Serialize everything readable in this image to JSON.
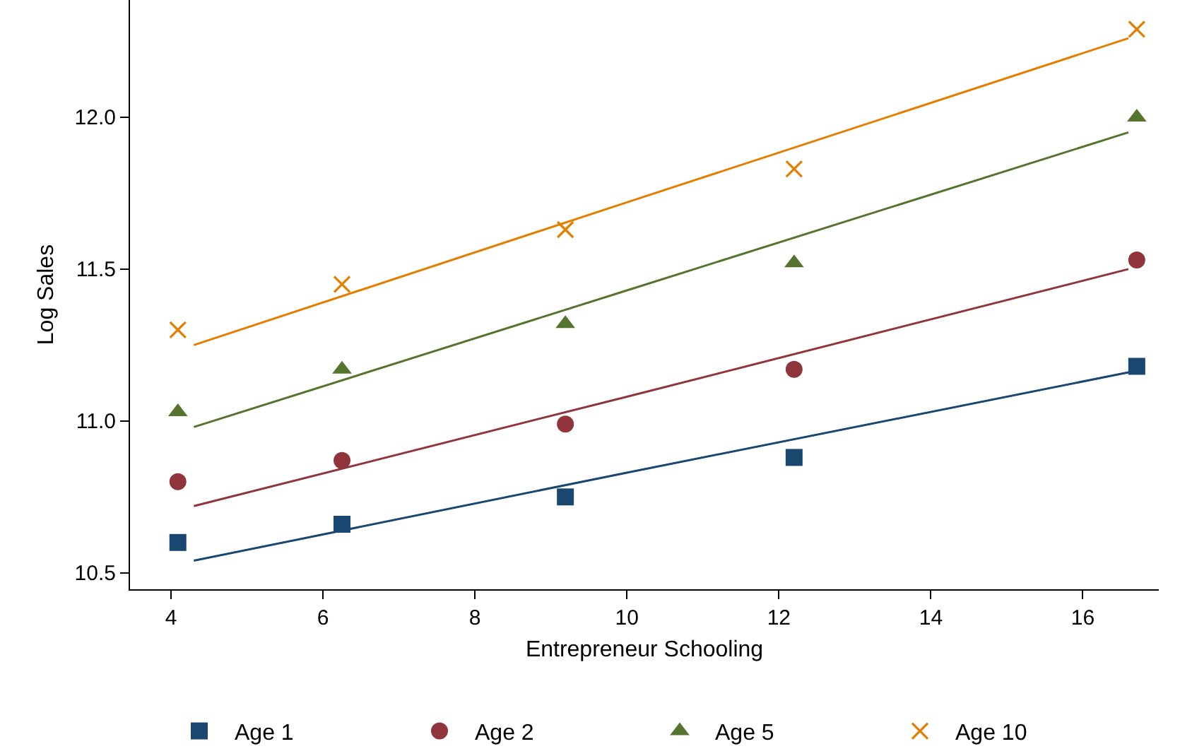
{
  "chart_data": {
    "type": "scatter",
    "xlabel": "Entrepreneur Schooling",
    "ylabel": "Log Sales",
    "xlim": [
      3.46,
      17.0
    ],
    "xticks": [
      4,
      6,
      8,
      10,
      12,
      14,
      16
    ],
    "ylim": [
      10.446,
      12.386
    ],
    "yticks": [
      {
        "value": 10.5,
        "label": "10.5"
      },
      {
        "value": 11,
        "label": "11.0"
      },
      {
        "value": 11.5,
        "label": "11.5"
      },
      {
        "value": 12,
        "label": "12.0"
      }
    ],
    "grid": false,
    "legend": "bottom",
    "x": [
      4.09,
      6.25,
      9.19,
      12.2,
      16.71
    ],
    "series": [
      {
        "name": "Age 1",
        "color": "#1a476f",
        "marker": "square",
        "values": [
          10.6,
          10.66,
          10.75,
          10.88,
          11.18
        ]
      },
      {
        "name": "Age 2",
        "color": "#90353b",
        "marker": "circle",
        "values": [
          10.8,
          10.87,
          10.99,
          11.17,
          11.53
        ]
      },
      {
        "name": "Age 5",
        "color": "#55752f",
        "marker": "triangle",
        "values": [
          11.03,
          11.17,
          11.32,
          11.52,
          12.0
        ]
      },
      {
        "name": "Age 10",
        "color": "#e37e00",
        "marker": "cross",
        "values": [
          11.3,
          11.45,
          11.63,
          11.83,
          12.29
        ]
      },
      {
        "type": "line",
        "color": "#1a476f",
        "x": [
          4.3,
          10,
          16.6
        ],
        "values": [
          10.54,
          10.83,
          11.16
        ]
      },
      {
        "type": "line",
        "color": "#90353b",
        "x": [
          4.3,
          10,
          16.6
        ],
        "values": [
          10.72,
          11.08,
          11.5
        ]
      },
      {
        "type": "line",
        "color": "#55752f",
        "x": [
          4.3,
          10,
          16.6
        ],
        "values": [
          10.98,
          11.43,
          11.95
        ]
      },
      {
        "type": "line",
        "color": "#e37e00",
        "x": [
          4.3,
          10,
          16.6
        ],
        "values": [
          11.25,
          11.72,
          12.26
        ]
      }
    ]
  }
}
